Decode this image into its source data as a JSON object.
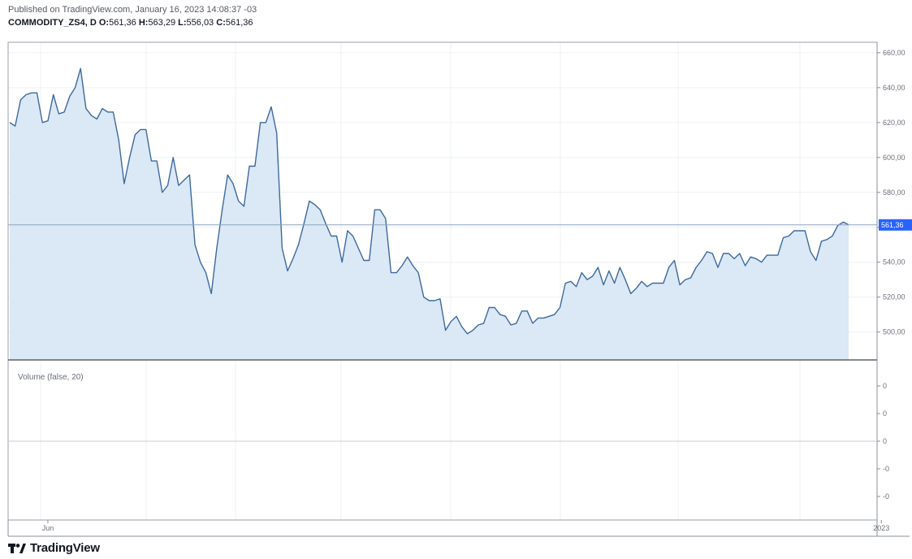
{
  "header": {
    "published": "Published on TradingView.com, January 16, 2023 14:08:37 -03",
    "symbol": "COMMODITY_ZS4, D",
    "o_label": "O:",
    "o_value": "561,36",
    "h_label": "H:",
    "h_value": "563,29",
    "l_label": "L:",
    "l_value": "556,03",
    "c_label": "C:",
    "c_value": "561,36"
  },
  "footer": {
    "brand": "TradingView"
  },
  "colors": {
    "line": "#3d6a9e",
    "fill": "#dbe8f5",
    "last_badge": "#2962ff",
    "grid": "#eef0f3",
    "axis": "#8a8f98"
  },
  "chart_data": {
    "type": "area",
    "y_ticks": [
      "660,00",
      "640,00",
      "620,00",
      "600,00",
      "580,00",
      "560,00",
      "540,00",
      "520,00",
      "500,00"
    ],
    "y_tick_values": [
      660,
      640,
      620,
      600,
      580,
      560,
      540,
      520,
      500
    ],
    "ylim": [
      484,
      666
    ],
    "last_price_label": "561,36",
    "last_price": 561.36,
    "x_ticks": [
      "Jun",
      "2023"
    ],
    "x_tick_index": [
      7,
      160
    ],
    "grid": true,
    "values": [
      620,
      618,
      633,
      636,
      637,
      637,
      620,
      621,
      636,
      625,
      626,
      635,
      640,
      651,
      628,
      624,
      622,
      628,
      626,
      626,
      610,
      585,
      600,
      613,
      616,
      616,
      598,
      598,
      580,
      584,
      600,
      584,
      587,
      590,
      550,
      540,
      534,
      522,
      548,
      570,
      590,
      585,
      575,
      572,
      595,
      595,
      620,
      620,
      629,
      614,
      548,
      535,
      542,
      550,
      562,
      575,
      573,
      570,
      562,
      555,
      555,
      540,
      558,
      555,
      548,
      541,
      541,
      570,
      570,
      565,
      534,
      534,
      538,
      543,
      538,
      534,
      520,
      518,
      518,
      519,
      501,
      506,
      509,
      503,
      499,
      501,
      504,
      505,
      514,
      514,
      510,
      509,
      504,
      505,
      512,
      512,
      505,
      508,
      508,
      509,
      510,
      514,
      528,
      529,
      526,
      534,
      530,
      532,
      537,
      527,
      535,
      528,
      537,
      530,
      522,
      525,
      529,
      526,
      528,
      528,
      528,
      537,
      541,
      527,
      530,
      531,
      537,
      541,
      546,
      545,
      537,
      545,
      545,
      542,
      545,
      538,
      543,
      542,
      540,
      544,
      544,
      544,
      554,
      555,
      558,
      558,
      558,
      546,
      541,
      552,
      553,
      555,
      561,
      563,
      561.36
    ]
  },
  "volume_pane": {
    "label": "Volume (false, 20)",
    "y_ticks": [
      "0",
      "0",
      "0",
      "-0",
      "-0"
    ]
  }
}
